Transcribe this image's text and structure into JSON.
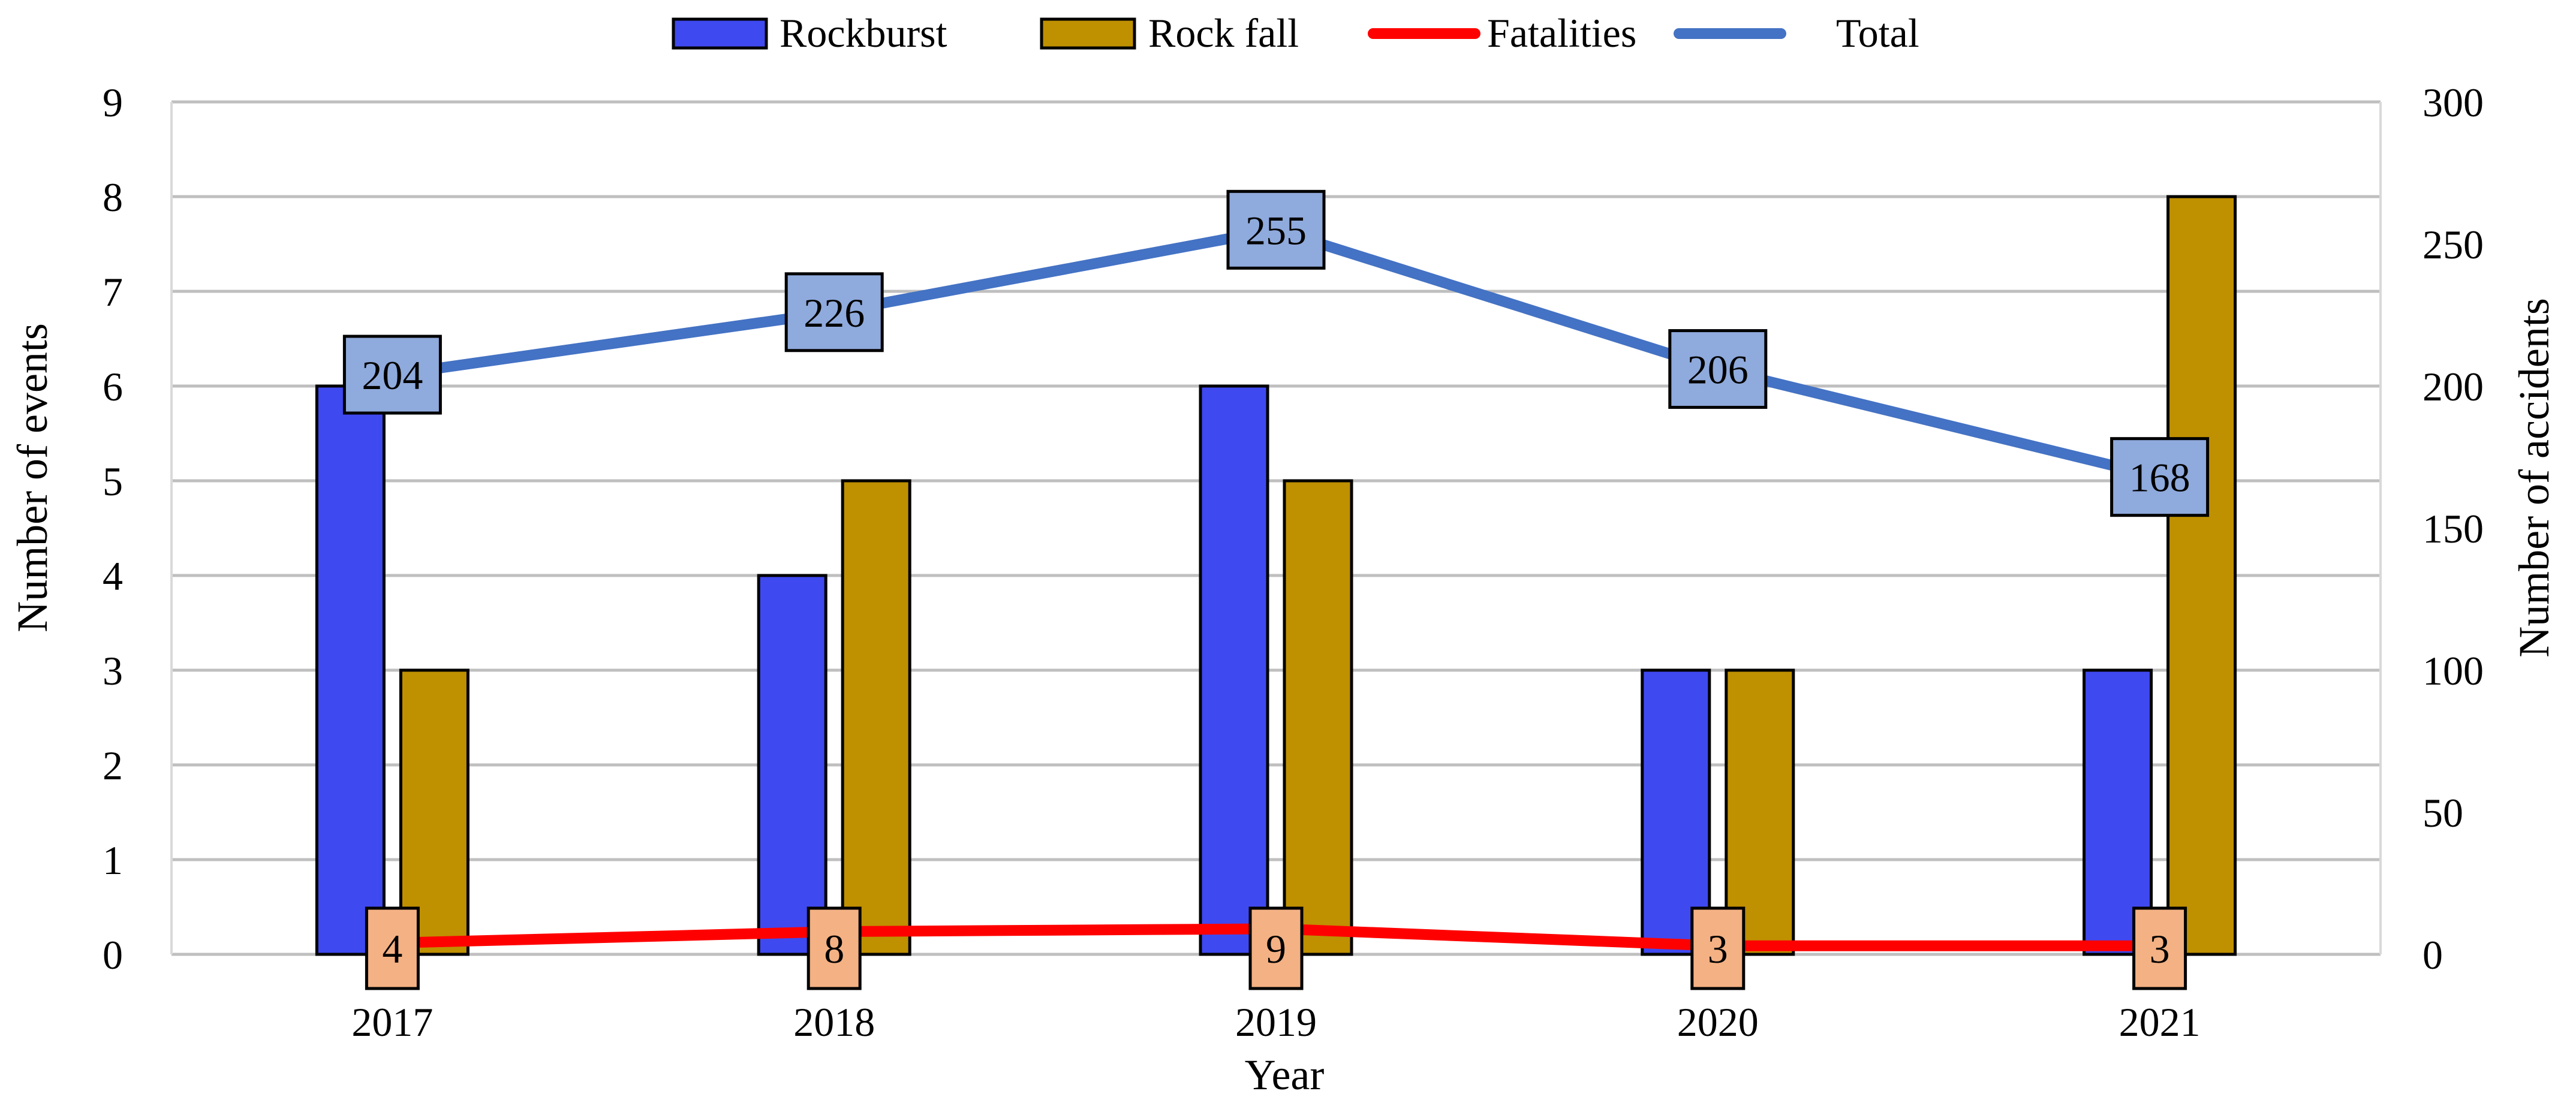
{
  "chart_data": {
    "type": "bar+line",
    "categories": [
      "2017",
      "2018",
      "2019",
      "2020",
      "2021"
    ],
    "xlabel": "Year",
    "ylabel_left": "Number of events",
    "ylabel_right": "Number of accidents",
    "ylim_left": [
      0,
      9
    ],
    "ylim_right": [
      0,
      300
    ],
    "yticks_left": [
      "0",
      "1",
      "2",
      "3",
      "4",
      "5",
      "6",
      "7",
      "8",
      "9"
    ],
    "yticks_right": [
      "0",
      "50",
      "100",
      "150",
      "200",
      "250",
      "300"
    ],
    "grid": true,
    "legend_position": "top",
    "series": [
      {
        "name": "Rockburst",
        "kind": "bar",
        "axis": "left",
        "color": "#3F49F0",
        "values": [
          6,
          4,
          6,
          3,
          3
        ]
      },
      {
        "name": "Rock fall",
        "kind": "bar",
        "axis": "left",
        "color": "#BF9000",
        "values": [
          3,
          5,
          5,
          3,
          8
        ]
      },
      {
        "name": "Fatalities",
        "kind": "line",
        "axis": "right",
        "color": "#FF0000",
        "label_fill": "#F4B183",
        "values": [
          4,
          8,
          9,
          3,
          3
        ],
        "labels": [
          "4",
          "8",
          "9",
          "3",
          "3"
        ]
      },
      {
        "name": "Total",
        "kind": "line",
        "axis": "right",
        "color": "#4472C4",
        "label_fill": "#8FAADC",
        "values": [
          204,
          226,
          255,
          206,
          168
        ],
        "labels": [
          "204",
          "226",
          "255",
          "206",
          "168"
        ]
      }
    ]
  }
}
